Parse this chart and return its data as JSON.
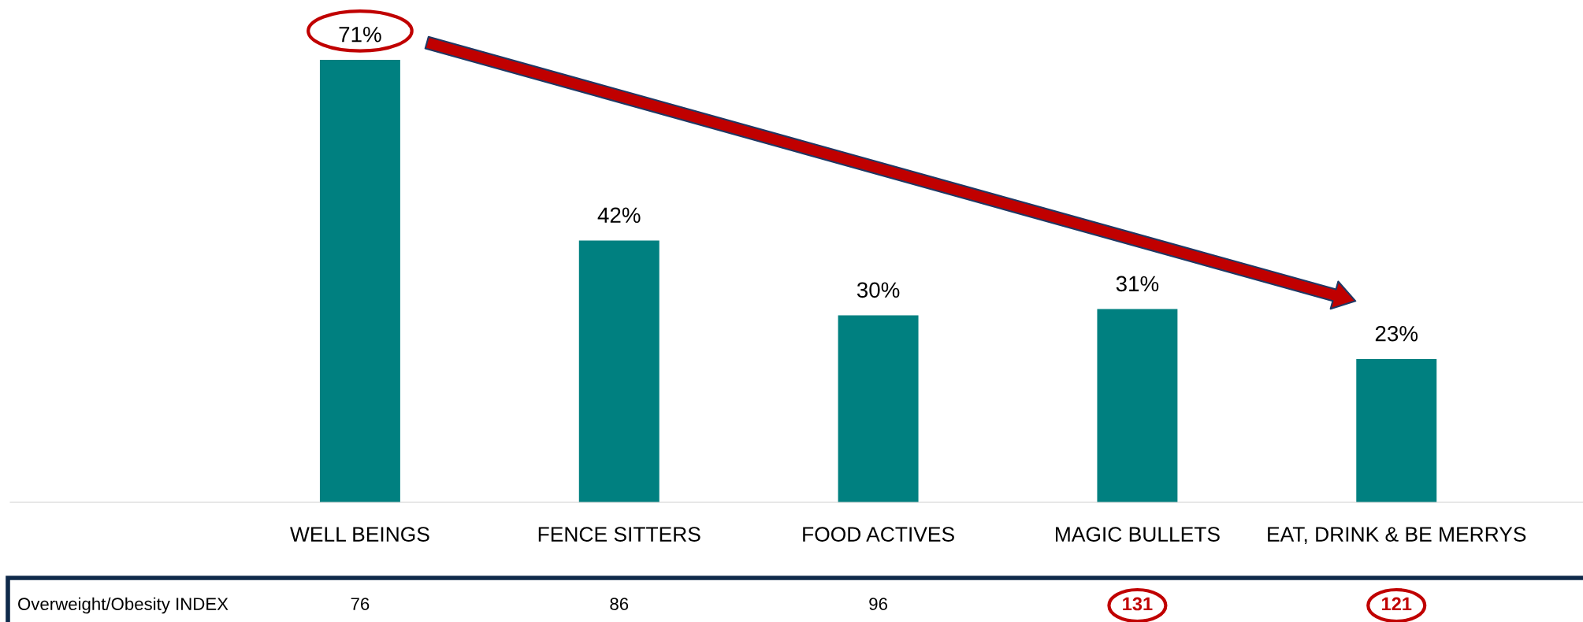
{
  "chart_data": {
    "type": "bar",
    "categories": [
      "WELL BEINGS",
      "FENCE SITTERS",
      "FOOD ACTIVES",
      "MAGIC BULLETS",
      "EAT, DRINK & BE MERRYS"
    ],
    "values": [
      71,
      42,
      30,
      31,
      23
    ],
    "color": "#008080",
    "data_labels": true,
    "value_labels": [
      "71%",
      "42%",
      "30%",
      "31%",
      "23%"
    ],
    "annotations": [
      "Overweight/Obesity INDEX",
      "76",
      "86",
      "96",
      "131",
      "121"
    ]
  }
}
